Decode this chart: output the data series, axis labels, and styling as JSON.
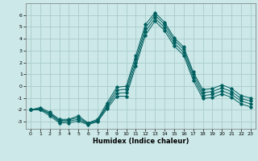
{
  "xlabel": "Humidex (Indice chaleur)",
  "bg_color": "#cce8e8",
  "grid_color": "#aacccc",
  "line_color": "#006060",
  "xlim": [
    -0.5,
    23.5
  ],
  "ylim": [
    -3.6,
    7.0
  ],
  "yticks": [
    -3,
    -2,
    -1,
    0,
    1,
    2,
    3,
    4,
    5,
    6
  ],
  "xticks": [
    0,
    1,
    2,
    3,
    4,
    5,
    6,
    7,
    8,
    9,
    10,
    11,
    12,
    13,
    14,
    15,
    16,
    17,
    18,
    19,
    20,
    21,
    22,
    23
  ],
  "line1_x": [
    0,
    1,
    2,
    3,
    4,
    5,
    6,
    7,
    8,
    9,
    10,
    11,
    12,
    13,
    14,
    15,
    16,
    17,
    18,
    19,
    20,
    21,
    22,
    23
  ],
  "line1_y": [
    -2.0,
    -1.8,
    -2.2,
    -2.8,
    -2.8,
    -2.5,
    -3.1,
    -2.8,
    -1.4,
    -0.1,
    0.0,
    2.6,
    5.2,
    6.2,
    5.4,
    4.1,
    3.3,
    1.2,
    -0.3,
    -0.2,
    0.1,
    -0.2,
    -0.8,
    -1.0
  ],
  "line2_x": [
    0,
    1,
    2,
    3,
    4,
    5,
    6,
    7,
    8,
    9,
    10,
    11,
    12,
    13,
    14,
    15,
    16,
    17,
    18,
    19,
    20,
    21,
    22,
    23
  ],
  "line2_y": [
    -2.0,
    -1.9,
    -2.3,
    -2.9,
    -2.85,
    -2.65,
    -3.15,
    -2.9,
    -1.6,
    -0.35,
    -0.25,
    2.3,
    4.9,
    6.0,
    5.2,
    3.9,
    3.1,
    1.0,
    -0.55,
    -0.45,
    -0.15,
    -0.45,
    -1.05,
    -1.25
  ],
  "line3_x": [
    0,
    1,
    2,
    3,
    4,
    5,
    6,
    7,
    8,
    9,
    10,
    11,
    12,
    13,
    14,
    15,
    16,
    17,
    18,
    19,
    20,
    21,
    22,
    23
  ],
  "line3_y": [
    -2.0,
    -1.95,
    -2.35,
    -3.0,
    -2.95,
    -2.8,
    -3.2,
    -2.95,
    -1.75,
    -0.6,
    -0.55,
    2.0,
    4.6,
    5.75,
    4.95,
    3.65,
    2.85,
    0.75,
    -0.8,
    -0.7,
    -0.4,
    -0.7,
    -1.25,
    -1.5
  ],
  "line4_x": [
    0,
    1,
    2,
    3,
    4,
    5,
    6,
    7,
    8,
    9,
    10,
    11,
    12,
    13,
    14,
    15,
    16,
    17,
    18,
    19,
    20,
    21,
    22,
    23
  ],
  "line4_y": [
    -2.0,
    -2.0,
    -2.5,
    -3.1,
    -3.1,
    -2.95,
    -3.25,
    -3.0,
    -1.9,
    -0.85,
    -0.85,
    1.7,
    4.3,
    5.5,
    4.7,
    3.4,
    2.6,
    0.5,
    -1.05,
    -0.95,
    -0.65,
    -0.95,
    -1.5,
    -1.75
  ]
}
